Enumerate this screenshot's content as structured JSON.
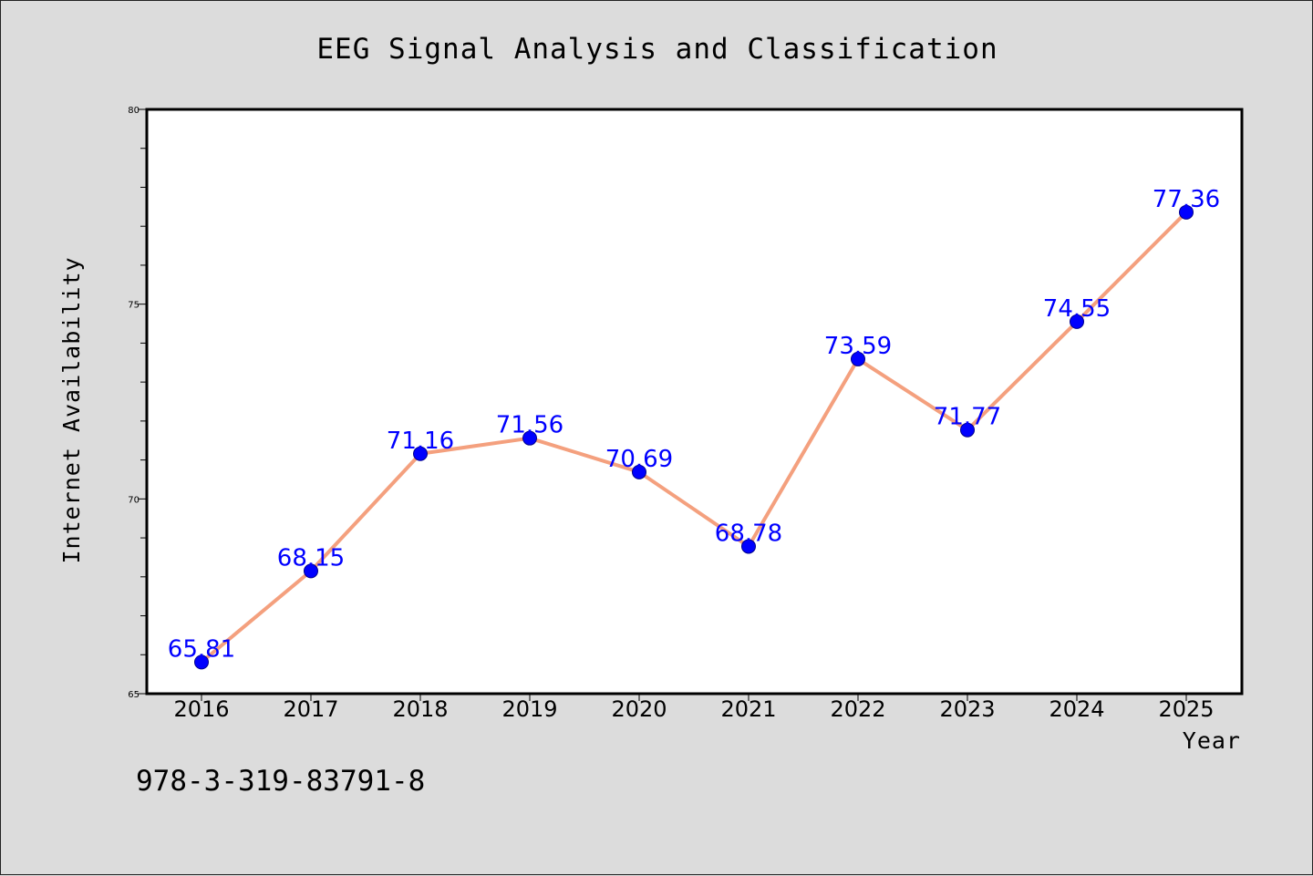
{
  "chart_data": {
    "type": "line",
    "title": "EEG Signal Analysis and Classification",
    "xlabel": "Year",
    "ylabel": "Internet Availability",
    "x": [
      "2016",
      "2017",
      "2018",
      "2019",
      "2020",
      "2021",
      "2022",
      "2023",
      "2024",
      "2025"
    ],
    "series": [
      {
        "values": [
          65.81,
          68.15,
          71.16,
          71.56,
          70.69,
          68.78,
          73.59,
          71.77,
          74.55,
          77.36
        ],
        "line_color": "#f4a07e",
        "marker_color": "#0000ff"
      }
    ],
    "data_labels": [
      "65.81",
      "68.15",
      "71.16",
      "71.56",
      "70.69",
      "68.78",
      "73.59",
      "71.77",
      "74.55",
      "77.36"
    ],
    "ylim": [
      65,
      80
    ],
    "yticks": [
      65,
      70,
      75,
      80
    ],
    "grid": false,
    "legend": "none"
  },
  "footer_note": "978-3-319-83791-8",
  "colors": {
    "background": "#dcdcdc",
    "plot_background": "#ffffff",
    "line": "#f4a07e",
    "marker": "#0000ff",
    "data_label": "#0000ff"
  }
}
